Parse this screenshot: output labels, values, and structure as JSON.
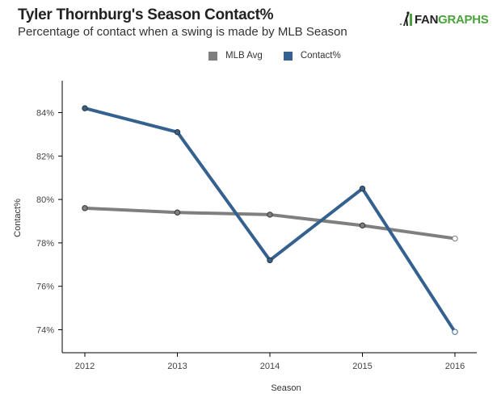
{
  "header": {
    "title": "Tyler Thornburg's Season Contact%",
    "subtitle": "Percentage of contact when a swing is made by MLB Season",
    "logo_text_dark": "FAN",
    "logo_text_green": "GRAPHS"
  },
  "colors": {
    "mlb_avg": "#7f7f7f",
    "contact": "#34618f",
    "logo_green": "#4aa43b"
  },
  "chart_data": {
    "type": "line",
    "title": "Tyler Thornburg's Season Contact%",
    "subtitle": "Percentage of contact when a swing is made by MLB Season",
    "xlabel": "Season",
    "ylabel": "Contact%",
    "x": [
      "2012",
      "2013",
      "2014",
      "2015",
      "2016"
    ],
    "ylim": [
      73,
      85.5
    ],
    "yticks": [
      74,
      76,
      78,
      80,
      82,
      84
    ],
    "ytick_labels": [
      "74%",
      "76%",
      "78%",
      "80%",
      "82%",
      "84%"
    ],
    "grid": false,
    "legend_position": "top-center",
    "series": [
      {
        "name": "MLB Avg",
        "color": "#7f7f7f",
        "values": [
          79.6,
          79.4,
          79.3,
          78.8,
          78.2
        ]
      },
      {
        "name": "Contact%",
        "color": "#34618f",
        "values": [
          84.2,
          83.1,
          77.2,
          80.5,
          73.9
        ]
      }
    ]
  }
}
